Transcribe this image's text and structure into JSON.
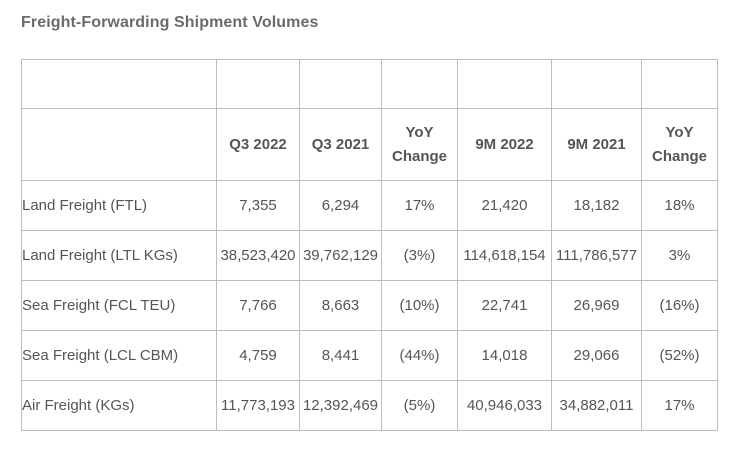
{
  "title": "Freight-Forwarding Shipment Volumes",
  "headers": [
    "",
    "Q3 2022",
    "Q3 2021",
    "YoY Change",
    "9M 2022",
    "9M 2021",
    "YoY Change"
  ],
  "rows": [
    {
      "label": "Land Freight (FTL)",
      "values": [
        "7,355",
        "6,294",
        "17%",
        "21,420",
        "18,182",
        "18%"
      ]
    },
    {
      "label": "Land Freight (LTL KGs)",
      "values": [
        "38,523,420",
        "39,762,129",
        "(3%)",
        "114,618,154",
        "111,786,577",
        "3%"
      ]
    },
    {
      "label": "Sea Freight (FCL TEU)",
      "values": [
        "7,766",
        "8,663",
        "(10%)",
        "22,741",
        "26,969",
        "(16%)"
      ]
    },
    {
      "label": "Sea Freight (LCL CBM)",
      "values": [
        "4,759",
        "8,441",
        "(44%)",
        "14,018",
        "29,066",
        "(52%)"
      ]
    },
    {
      "label": "Air Freight (KGs)",
      "values": [
        "11,773,193",
        "12,392,469",
        "(5%)",
        "40,946,033",
        "34,882,011",
        "17%"
      ]
    }
  ]
}
